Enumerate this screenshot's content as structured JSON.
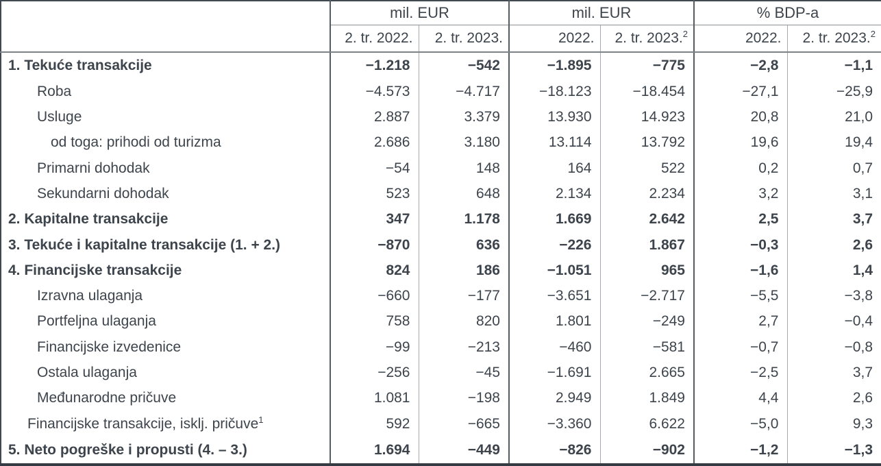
{
  "chart_data": {
    "type": "table",
    "header": {
      "groups": [
        {
          "label": "mil. EUR",
          "subcols": [
            {
              "label": "2. tr. 2022."
            },
            {
              "label": "2. tr. 2023."
            }
          ]
        },
        {
          "label": "mil. EUR",
          "subcols": [
            {
              "label": "2022."
            },
            {
              "label": "2. tr. 2023.",
              "sup": "2"
            }
          ]
        },
        {
          "label": "% BDP-a",
          "subcols": [
            {
              "label": "2022."
            },
            {
              "label": "2. tr. 2023.",
              "sup": "2"
            }
          ]
        }
      ]
    },
    "rows": [
      {
        "label": "1. Tekuće transakcije",
        "indent": "ind0",
        "bold": true,
        "values": [
          "−1.218",
          "−542",
          "−1.895",
          "−775",
          "−2,8",
          "−1,1"
        ]
      },
      {
        "label": "Roba",
        "indent": "ind1",
        "bold": false,
        "values": [
          "−4.573",
          "−4.717",
          "−18.123",
          "−18.454",
          "−27,1",
          "−25,9"
        ]
      },
      {
        "label": "Usluge",
        "indent": "ind1",
        "bold": false,
        "values": [
          "2.887",
          "3.379",
          "13.930",
          "14.923",
          "20,8",
          "21,0"
        ]
      },
      {
        "label": "od toga: prihodi od turizma",
        "indent": "ind2",
        "bold": false,
        "values": [
          "2.686",
          "3.180",
          "13.114",
          "13.792",
          "19,6",
          "19,4"
        ]
      },
      {
        "label": "Primarni dohodak",
        "indent": "ind1",
        "bold": false,
        "values": [
          "−54",
          "148",
          "164",
          "522",
          "0,2",
          "0,7"
        ]
      },
      {
        "label": "Sekundarni dohodak",
        "indent": "ind1",
        "bold": false,
        "values": [
          "523",
          "648",
          "2.134",
          "2.234",
          "3,2",
          "3,1"
        ]
      },
      {
        "label": "2. Kapitalne transakcije",
        "indent": "ind0",
        "bold": true,
        "values": [
          "347",
          "1.178",
          "1.669",
          "2.642",
          "2,5",
          "3,7"
        ]
      },
      {
        "label": "3. Tekuće i kapitalne transakcije (1. + 2.)",
        "indent": "ind0",
        "bold": true,
        "values": [
          "−870",
          "636",
          "−226",
          "1.867",
          "−0,3",
          "2,6"
        ]
      },
      {
        "label": "4. Financijske transakcije",
        "indent": "ind0",
        "bold": true,
        "values": [
          "824",
          "186",
          "−1.051",
          "965",
          "−1,6",
          "1,4"
        ]
      },
      {
        "label": "Izravna ulaganja",
        "indent": "ind1",
        "bold": false,
        "values": [
          "−660",
          "−177",
          "−3.651",
          "−2.717",
          "−5,5",
          "−3,8"
        ]
      },
      {
        "label": "Portfeljna ulaganja",
        "indent": "ind1",
        "bold": false,
        "values": [
          "758",
          "820",
          "1.801",
          "−249",
          "2,7",
          "−0,4"
        ]
      },
      {
        "label": "Financijske izvedenice",
        "indent": "ind1",
        "bold": false,
        "values": [
          "−99",
          "−213",
          "−460",
          "−581",
          "−0,7",
          "−0,8"
        ]
      },
      {
        "label": "Ostala ulaganja",
        "indent": "ind1",
        "bold": false,
        "values": [
          "−256",
          "−45",
          "−1.691",
          "2.665",
          "−2,5",
          "3,7"
        ]
      },
      {
        "label": "Međunarodne pričuve",
        "indent": "ind1",
        "bold": false,
        "values": [
          "1.081",
          "−198",
          "2.949",
          "1.849",
          "4,4",
          "2,6"
        ]
      },
      {
        "label": "Financijske transakcije, isklj. pričuve",
        "sup": "1",
        "indent": "indh",
        "bold": false,
        "values": [
          "592",
          "−665",
          "−3.360",
          "6.622",
          "−5,0",
          "9,3"
        ]
      },
      {
        "label": "5. Neto pogreške i propusti (4. – 3.)",
        "indent": "ind0",
        "bold": true,
        "values": [
          "1.694",
          "−449",
          "−826",
          "−902",
          "−1,2",
          "−1,3"
        ]
      }
    ]
  },
  "colors": {
    "text": "#3d444c",
    "outer_border": "#41484f",
    "group_line": "#545b61",
    "inner_line": "#a6aaae",
    "header_separator": "#7d8286"
  }
}
